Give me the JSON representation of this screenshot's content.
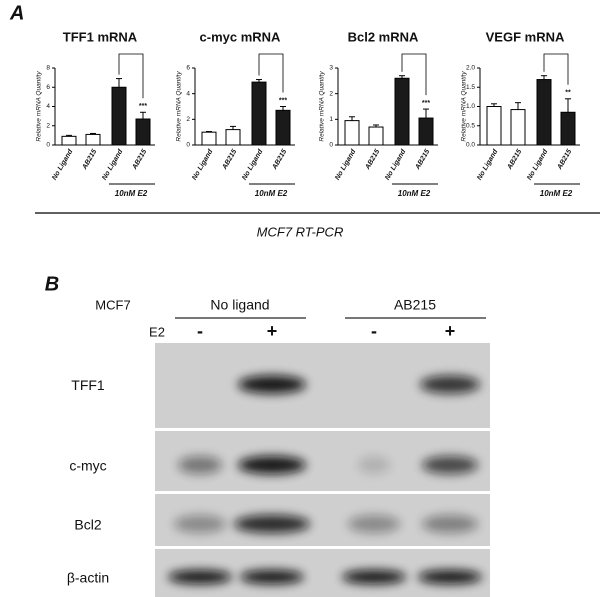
{
  "panel_a": {
    "label": "A",
    "footer": "MCF7 RT-PCR"
  },
  "chart_data": [
    {
      "type": "bar",
      "title": "TFF1 mRNA",
      "ylabel": "Relative mRNA Quantity",
      "categories": [
        "No Ligand",
        "AB215",
        "No Ligand",
        "AB215"
      ],
      "group_label": "10nM E2",
      "values": [
        0.9,
        1.1,
        6.0,
        2.7
      ],
      "errors": [
        0.1,
        0.1,
        0.9,
        0.7
      ],
      "colors": [
        "#ffffff",
        "#ffffff",
        "#1a1a1a",
        "#1a1a1a"
      ],
      "significance": "***",
      "ylim": [
        0,
        8
      ],
      "yticks": [
        0,
        2,
        4,
        6,
        8
      ]
    },
    {
      "type": "bar",
      "title": "c-myc mRNA",
      "ylabel": "Relative mRNA Quantity",
      "categories": [
        "No Ligand",
        "AB215",
        "No Ligand",
        "AB215"
      ],
      "group_label": "10nM E2",
      "values": [
        1.0,
        1.2,
        4.9,
        2.7
      ],
      "errors": [
        0.05,
        0.25,
        0.2,
        0.3
      ],
      "colors": [
        "#ffffff",
        "#ffffff",
        "#1a1a1a",
        "#1a1a1a"
      ],
      "significance": "***",
      "ylim": [
        0,
        6
      ],
      "yticks": [
        0,
        2,
        4,
        6
      ]
    },
    {
      "type": "bar",
      "title": "Bcl2 mRNA",
      "ylabel": "Relative mRNA Quantity",
      "categories": [
        "No Ligand",
        "AB215",
        "No Ligand",
        "AB215"
      ],
      "group_label": "10nM E2",
      "values": [
        0.95,
        0.7,
        2.6,
        1.05
      ],
      "errors": [
        0.15,
        0.08,
        0.1,
        0.35
      ],
      "colors": [
        "#ffffff",
        "#ffffff",
        "#1a1a1a",
        "#1a1a1a"
      ],
      "significance": "***",
      "ylim": [
        0,
        3
      ],
      "yticks": [
        0,
        1,
        2,
        3
      ]
    },
    {
      "type": "bar",
      "title": "VEGF mRNA",
      "ylabel": "Relative mRNA Quantity",
      "categories": [
        "No Ligand",
        "AB215",
        "No Ligand",
        "AB215"
      ],
      "group_label": "10nM E2",
      "values": [
        1.0,
        0.92,
        1.7,
        0.85
      ],
      "errors": [
        0.07,
        0.18,
        0.1,
        0.35
      ],
      "colors": [
        "#ffffff",
        "#ffffff",
        "#1a1a1a",
        "#1a1a1a"
      ],
      "significance": "**",
      "ylim": [
        0,
        2
      ],
      "yticks": [
        {
          "value": 0,
          "label": "0.0"
        },
        {
          "value": 0.5,
          "label": "0.5"
        },
        {
          "value": 1,
          "label": "1.0"
        },
        {
          "value": 1.5,
          "label": "1.5"
        },
        {
          "value": 2,
          "label": "2.0"
        }
      ]
    }
  ],
  "panel_b": {
    "label": "B",
    "cell_line": "MCF7",
    "groups": [
      "No ligand",
      "AB215"
    ],
    "treatment": "E2",
    "lanes": [
      "-",
      "+",
      "-",
      "+"
    ],
    "rows": [
      "TFF1",
      "c-myc",
      "Bcl2",
      "β-actin"
    ]
  }
}
